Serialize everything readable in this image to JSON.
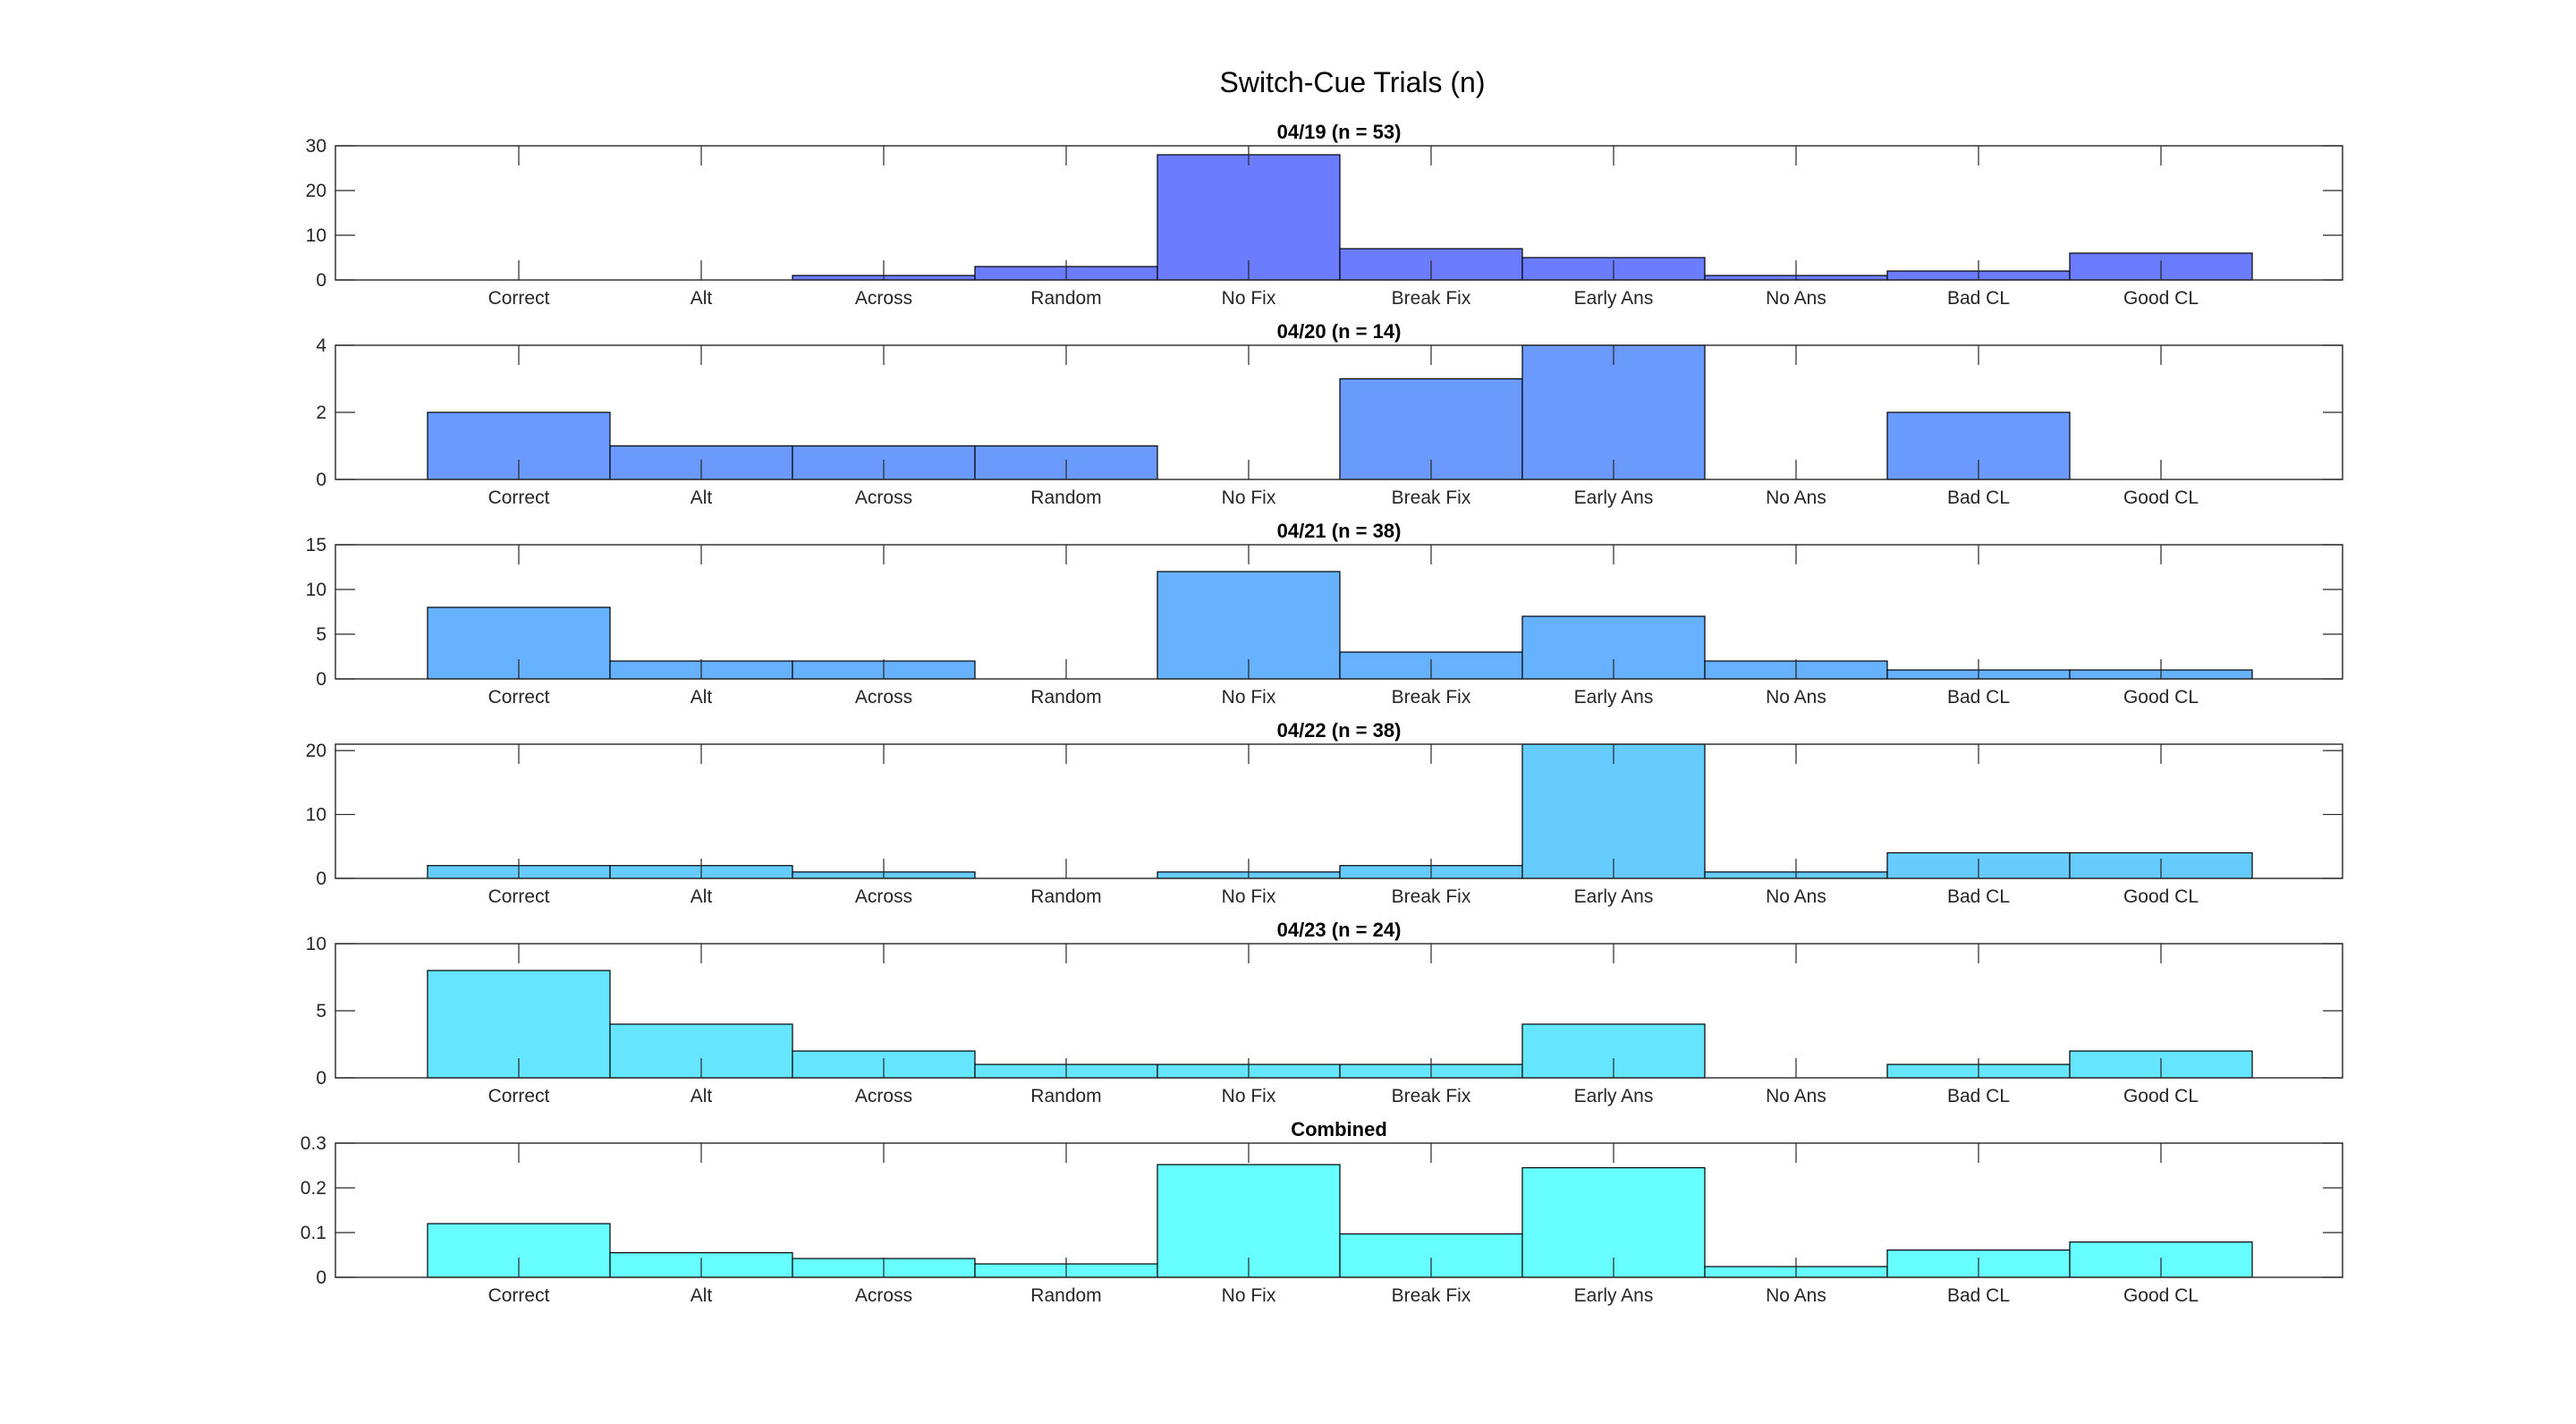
{
  "figure": {
    "title": "Switch-Cue Trials (n)"
  },
  "chart_data": [
    {
      "type": "bar",
      "title": "04/19 (n = 53)",
      "categories": [
        "Correct",
        "Alt",
        "Across",
        "Random",
        "No Fix",
        "Break Fix",
        "Early Ans",
        "No Ans",
        "Bad CL",
        "Good CL"
      ],
      "values": [
        0,
        0,
        1,
        3,
        28,
        7,
        5,
        1,
        2,
        6
      ],
      "ylim": [
        0,
        30
      ],
      "yticks": [
        0,
        10,
        20,
        30
      ],
      "color": "#6b7cfe"
    },
    {
      "type": "bar",
      "title": "04/20 (n = 14)",
      "categories": [
        "Correct",
        "Alt",
        "Across",
        "Random",
        "No Fix",
        "Break Fix",
        "Early Ans",
        "No Ans",
        "Bad CL",
        "Good CL"
      ],
      "values": [
        2,
        1,
        1,
        1,
        0,
        3,
        4,
        0,
        2,
        0
      ],
      "ylim": [
        0,
        4
      ],
      "yticks": [
        0,
        2,
        4
      ],
      "color": "#6a9afe"
    },
    {
      "type": "bar",
      "title": "04/21 (n = 38)",
      "categories": [
        "Correct",
        "Alt",
        "Across",
        "Random",
        "No Fix",
        "Break Fix",
        "Early Ans",
        "No Ans",
        "Bad CL",
        "Good CL"
      ],
      "values": [
        8,
        2,
        2,
        0,
        12,
        3,
        7,
        2,
        1,
        1
      ],
      "ylim": [
        0,
        15
      ],
      "yticks": [
        0,
        5,
        10,
        15
      ],
      "color": "#66b2fe"
    },
    {
      "type": "bar",
      "title": "04/22 (n = 38)",
      "categories": [
        "Correct",
        "Alt",
        "Across",
        "Random",
        "No Fix",
        "Break Fix",
        "Early Ans",
        "No Ans",
        "Bad CL",
        "Good CL"
      ],
      "values": [
        2,
        2,
        1,
        0,
        1,
        2,
        21,
        1,
        4,
        4
      ],
      "ylim": [
        0,
        21
      ],
      "yticks": [
        0,
        10,
        20
      ],
      "color": "#66ccfe"
    },
    {
      "type": "bar",
      "title": "04/23 (n = 24)",
      "categories": [
        "Correct",
        "Alt",
        "Across",
        "Random",
        "No Fix",
        "Break Fix",
        "Early Ans",
        "No Ans",
        "Bad CL",
        "Good CL"
      ],
      "values": [
        8,
        4,
        2,
        1,
        1,
        1,
        4,
        0,
        1,
        2
      ],
      "ylim": [
        0,
        10
      ],
      "yticks": [
        0,
        5,
        10
      ],
      "color": "#66e6fe"
    },
    {
      "type": "bar",
      "title": "Combined",
      "categories": [
        "Correct",
        "Alt",
        "Across",
        "Random",
        "No Fix",
        "Break Fix",
        "Early Ans",
        "No Ans",
        "Bad CL",
        "Good CL"
      ],
      "values": [
        0.12,
        0.055,
        0.042,
        0.03,
        0.252,
        0.097,
        0.245,
        0.024,
        0.061,
        0.079
      ],
      "ylim": [
        0,
        0.3
      ],
      "yticks": [
        0,
        0.1,
        0.2,
        0.3
      ],
      "color": "#66fefe"
    }
  ]
}
